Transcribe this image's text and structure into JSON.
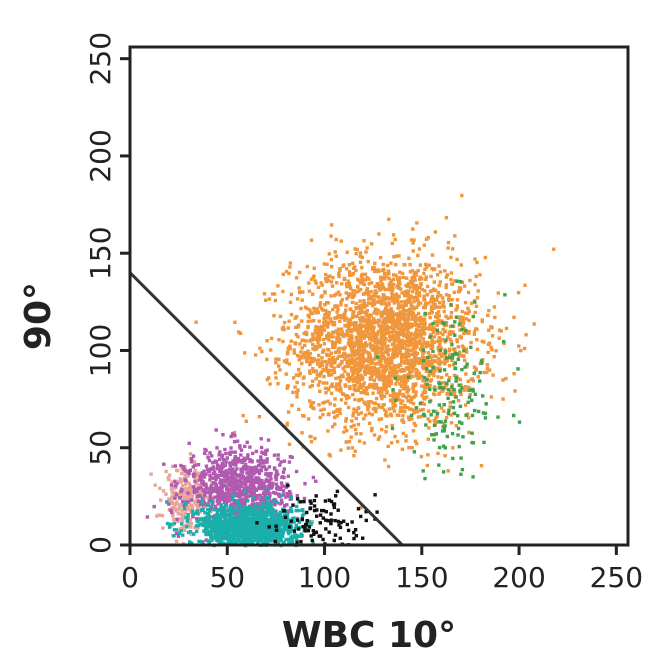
{
  "chart_data": {
    "type": "scatter",
    "title": "",
    "xlabel": "WBC 10°",
    "ylabel": "90°",
    "xlim": [
      0,
      256
    ],
    "ylim": [
      0,
      256
    ],
    "x_ticks": [
      0,
      50,
      100,
      150,
      200,
      250
    ],
    "y_ticks": [
      0,
      50,
      100,
      150,
      200,
      250
    ],
    "grid": false,
    "gate_line": {
      "x": [
        0,
        140
      ],
      "y": [
        140,
        0
      ]
    },
    "series": [
      {
        "color": "#F0963C",
        "cx": 130,
        "cy": 105,
        "sx": 24,
        "sy": 22,
        "count": 2600
      },
      {
        "color": "#3FA34D",
        "cx": 165,
        "cy": 80,
        "sx": 14,
        "sy": 22,
        "count": 160
      },
      {
        "color": "#E8A59A",
        "cx": 28,
        "cy": 24,
        "sx": 6,
        "sy": 8,
        "count": 260
      },
      {
        "color": "#B05AB0",
        "cx": 55,
        "cy": 30,
        "sx": 13,
        "sy": 10,
        "count": 900
      },
      {
        "color": "#1AAFAA",
        "cx": 60,
        "cy": 10,
        "sx": 13,
        "sy": 6,
        "count": 1200
      },
      {
        "color": "#111111",
        "cx": 95,
        "cy": 12,
        "sx": 11,
        "sy": 8,
        "count": 110
      }
    ]
  }
}
